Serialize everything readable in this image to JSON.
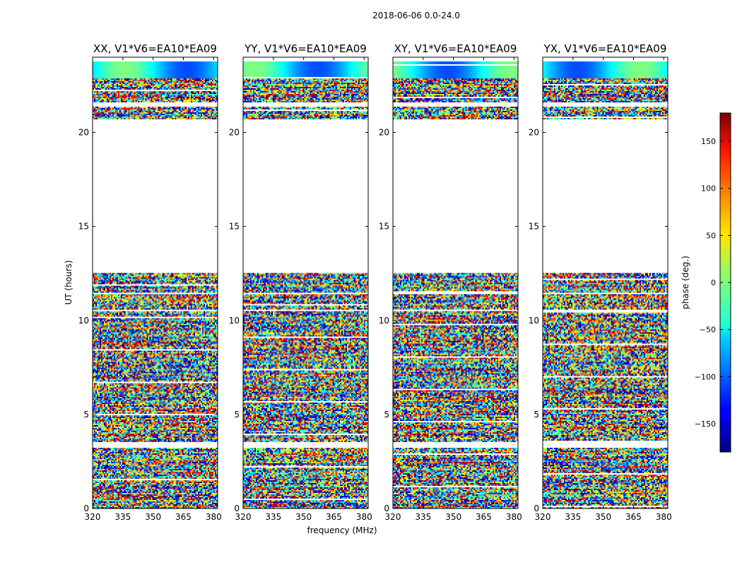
{
  "figure": {
    "suptitle": "2018-06-06 0.0-24.0"
  },
  "chart_data": {
    "type": "heatmap",
    "xlabel": "frequency (MHz)",
    "ylabel": "UT (hours)",
    "xlim": [
      320,
      382
    ],
    "ylim": [
      0,
      24
    ],
    "xticks": [
      320,
      335,
      350,
      365,
      380
    ],
    "yticks": [
      0,
      5,
      10,
      15,
      20
    ],
    "grid": false,
    "colormap": "jet",
    "panels": [
      {
        "title": "XX, V1*V6=EA10*EA09"
      },
      {
        "title": "YY, V1*V6=EA10*EA09"
      },
      {
        "title": "XY, V1*V6=EA10*EA09"
      },
      {
        "title": "YX, V1*V6=EA10*EA09"
      }
    ],
    "data_blocks_ut_hours": [
      [
        0.0,
        3.2
      ],
      [
        3.5,
        10.5
      ],
      [
        10.6,
        11.4
      ],
      [
        11.5,
        12.5
      ],
      [
        20.7,
        21.4
      ],
      [
        21.6,
        23.8
      ]
    ],
    "colorbar": {
      "label": "phase (deg.)",
      "range": [
        -180,
        180
      ],
      "ticks": [
        -150,
        -100,
        -50,
        0,
        50,
        100,
        150
      ],
      "tick_labels": [
        "−150",
        "−100",
        "−50",
        "0",
        "50",
        "100",
        "150"
      ]
    }
  }
}
